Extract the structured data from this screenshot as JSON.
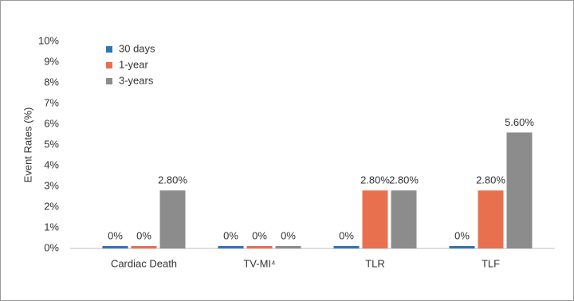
{
  "chart_data": {
    "type": "bar",
    "y_label": "Event Rates (%)",
    "categories": [
      "Cardiac Death",
      "TV-MI⁴",
      "TLR",
      "TLF"
    ],
    "series": [
      {
        "name": "30 days",
        "color": "#2e75b6",
        "values": [
          0,
          0,
          0,
          0
        ],
        "value_labels": [
          "0%",
          "0%",
          "0%",
          "0%"
        ]
      },
      {
        "name": "1-year",
        "color": "#e8704f",
        "values": [
          0,
          0,
          2.8,
          2.8
        ],
        "value_labels": [
          "0%",
          "0%",
          "2.80%",
          "2.80%"
        ]
      },
      {
        "name": "3-years",
        "color": "#8c8c8c",
        "values": [
          2.8,
          0,
          2.8,
          5.6
        ],
        "value_labels": [
          "2.80%",
          "0%",
          "2.80%",
          "5.60%"
        ]
      }
    ],
    "ylim": [
      0,
      10
    ],
    "yticks": [
      {
        "value": 0,
        "label": "0%"
      },
      {
        "value": 1,
        "label": "1%"
      },
      {
        "value": 2,
        "label": "2%"
      },
      {
        "value": 3,
        "label": "3%"
      },
      {
        "value": 4,
        "label": "4%"
      },
      {
        "value": 5,
        "label": "5%"
      },
      {
        "value": 6,
        "label": "6%"
      },
      {
        "value": 7,
        "label": "7%"
      },
      {
        "value": 8,
        "label": "8%"
      },
      {
        "value": 9,
        "label": "9%"
      },
      {
        "value": 10,
        "label": "10%"
      }
    ],
    "legend": "upper left",
    "grid": false
  }
}
